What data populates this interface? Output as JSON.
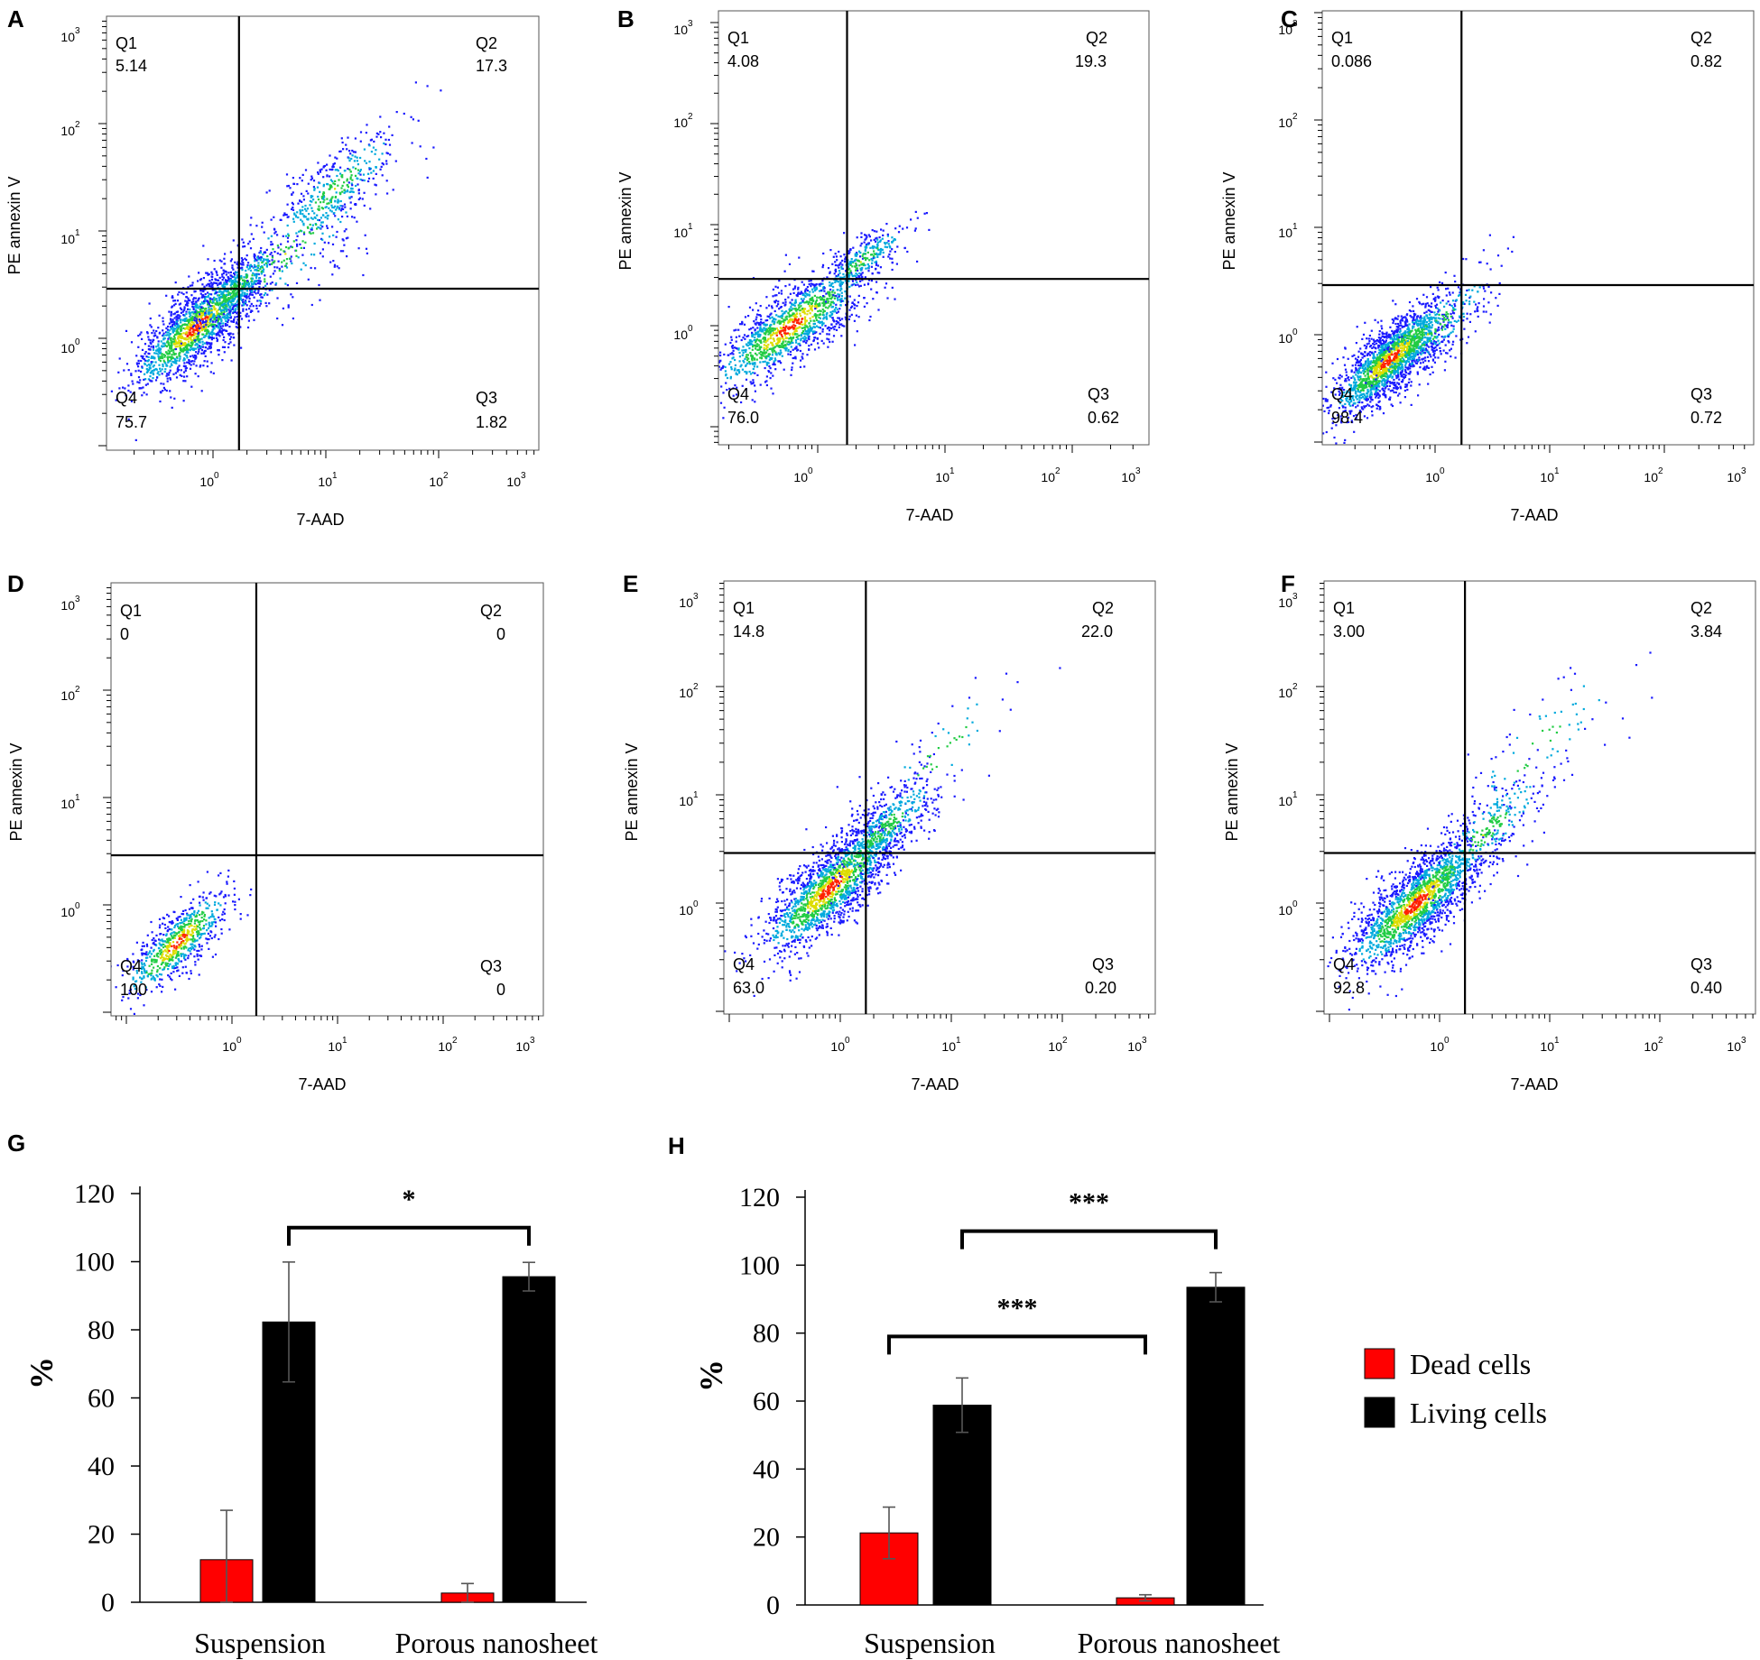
{
  "chart_data": [
    {
      "panel": "A",
      "type": "scatter",
      "xlabel": "7-AAD",
      "ylabel": "PE annexin V",
      "x_ticks": [
        "10",
        "10",
        "10",
        "10"
      ],
      "x_tick_exponents": [
        "0",
        "1",
        "2",
        "3"
      ],
      "y_ticks": [
        "10",
        "10",
        "10",
        "10"
      ],
      "y_tick_exponents": [
        "0",
        "1",
        "2",
        "3"
      ],
      "quadrants": {
        "Q1": {
          "label": "Q1",
          "value": "5.14"
        },
        "Q2": {
          "label": "Q2",
          "value": "17.3"
        },
        "Q3": {
          "label": "Q3",
          "value": "1.82"
        },
        "Q4": {
          "label": "Q4",
          "value": "75.7"
        }
      },
      "gate": {
        "x": 1.7,
        "y": 2.9
      },
      "clusters": [
        {
          "x": 0.7,
          "y": 1.3,
          "spread": 0.28,
          "n": 1500
        },
        {
          "x": 1.6,
          "y": 3.0,
          "spread": 0.2,
          "n": 400
        },
        {
          "x": 12,
          "y": 25,
          "spread": 0.3,
          "n": 400
        },
        {
          "x": 4,
          "y": 6,
          "spread": 0.45,
          "n": 250
        }
      ]
    },
    {
      "panel": "B",
      "type": "scatter",
      "xlabel": "7-AAD",
      "ylabel": "PE annexin V",
      "x_ticks": [
        "10",
        "10",
        "10",
        "10"
      ],
      "x_tick_exponents": [
        "0",
        "1",
        "2",
        "3"
      ],
      "y_ticks": [
        "10",
        "10",
        "10",
        "10"
      ],
      "y_tick_exponents": [
        "0",
        "1",
        "2",
        "3"
      ],
      "quadrants": {
        "Q1": {
          "label": "Q1",
          "value": "4.08"
        },
        "Q2": {
          "label": "Q2",
          "value": "19.3"
        },
        "Q3": {
          "label": "Q3",
          "value": "0.62"
        },
        "Q4": {
          "label": "Q4",
          "value": "76.0"
        }
      },
      "gate": {
        "x": 1.7,
        "y": 2.9
      },
      "clusters": [
        {
          "x": 0.6,
          "y": 1.0,
          "spread": 0.3,
          "n": 1300
        },
        {
          "x": 2.2,
          "y": 4.5,
          "spread": 0.18,
          "n": 300
        }
      ]
    },
    {
      "panel": "C",
      "type": "scatter",
      "xlabel": "7-AAD",
      "ylabel": "PE annexin V",
      "x_ticks": [
        "10",
        "10",
        "10",
        "10"
      ],
      "x_tick_exponents": [
        "0",
        "1",
        "2",
        "3"
      ],
      "y_ticks": [
        "10",
        "10",
        "10",
        "10"
      ],
      "y_tick_exponents": [
        "0",
        "1",
        "2",
        "3"
      ],
      "quadrants": {
        "Q1": {
          "label": "Q1",
          "value": "0.086"
        },
        "Q2": {
          "label": "Q2",
          "value": "0.82"
        },
        "Q3": {
          "label": "Q3",
          "value": "0.72"
        },
        "Q4": {
          "label": "Q4",
          "value": "98.4"
        }
      },
      "gate": {
        "x": 1.7,
        "y": 2.9
      },
      "clusters": [
        {
          "x": 0.4,
          "y": 0.6,
          "spread": 0.25,
          "n": 1800
        },
        {
          "x": 0.9,
          "y": 1.1,
          "spread": 0.3,
          "n": 300
        }
      ]
    },
    {
      "panel": "D",
      "type": "scatter",
      "xlabel": "7-AAD",
      "ylabel": "PE annexin V",
      "x_ticks": [
        "10",
        "10",
        "10",
        "10"
      ],
      "x_tick_exponents": [
        "0",
        "1",
        "2",
        "3"
      ],
      "y_ticks": [
        "10",
        "10",
        "10",
        "10"
      ],
      "y_tick_exponents": [
        "0",
        "1",
        "2",
        "3"
      ],
      "quadrants": {
        "Q1": {
          "label": "Q1",
          "value": "0"
        },
        "Q2": {
          "label": "Q2",
          "value": "0"
        },
        "Q3": {
          "label": "Q3",
          "value": "0"
        },
        "Q4": {
          "label": "Q4",
          "value": "100"
        }
      },
      "gate": {
        "x": 1.7,
        "y": 2.9
      },
      "clusters": [
        {
          "x": 0.3,
          "y": 0.45,
          "spread": 0.25,
          "n": 700
        }
      ]
    },
    {
      "panel": "E",
      "type": "scatter",
      "xlabel": "7-AAD",
      "ylabel": "PE annexin V",
      "x_ticks": [
        "10",
        "10",
        "10",
        "10"
      ],
      "x_tick_exponents": [
        "0",
        "1",
        "2",
        "3"
      ],
      "y_ticks": [
        "10",
        "10",
        "10",
        "10"
      ],
      "y_tick_exponents": [
        "0",
        "1",
        "2",
        "3"
      ],
      "quadrants": {
        "Q1": {
          "label": "Q1",
          "value": "14.8"
        },
        "Q2": {
          "label": "Q2",
          "value": "22.0"
        },
        "Q3": {
          "label": "Q3",
          "value": "0.20"
        },
        "Q4": {
          "label": "Q4",
          "value": "63.0"
        }
      },
      "gate": {
        "x": 1.7,
        "y": 2.9
      },
      "clusters": [
        {
          "x": 0.8,
          "y": 1.4,
          "spread": 0.3,
          "n": 1600
        },
        {
          "x": 2.5,
          "y": 5,
          "spread": 0.25,
          "n": 500
        },
        {
          "x": 8,
          "y": 25,
          "spread": 0.35,
          "n": 60
        }
      ]
    },
    {
      "panel": "F",
      "type": "scatter",
      "xlabel": "7-AAD",
      "ylabel": "PE annexin V",
      "x_ticks": [
        "10",
        "10",
        "10",
        "10"
      ],
      "x_tick_exponents": [
        "0",
        "1",
        "2",
        "3"
      ],
      "y_ticks": [
        "10",
        "10",
        "10",
        "10"
      ],
      "y_tick_exponents": [
        "0",
        "1",
        "2",
        "3"
      ],
      "quadrants": {
        "Q1": {
          "label": "Q1",
          "value": "3.00"
        },
        "Q2": {
          "label": "Q2",
          "value": "3.84"
        },
        "Q3": {
          "label": "Q3",
          "value": "0.40"
        },
        "Q4": {
          "label": "Q4",
          "value": "92.8"
        }
      },
      "gate": {
        "x": 1.7,
        "y": 2.9
      },
      "clusters": [
        {
          "x": 0.6,
          "y": 1.0,
          "spread": 0.3,
          "n": 1800
        },
        {
          "x": 2.5,
          "y": 4.5,
          "spread": 0.3,
          "n": 300
        },
        {
          "x": 8,
          "y": 30,
          "spread": 0.4,
          "n": 80
        }
      ]
    },
    {
      "panel": "G",
      "type": "bar",
      "categories": [
        "Suspension",
        "Porous nanosheet"
      ],
      "series": [
        {
          "name": "Dead cells",
          "values": [
            12.5,
            2.7
          ],
          "errors": [
            14.5,
            2.8
          ],
          "color": "#ff0000"
        },
        {
          "name": "Living cells",
          "values": [
            82.3,
            95.6
          ],
          "errors": [
            17.6,
            4.2
          ],
          "color": "#000000"
        }
      ],
      "ylabel": "%",
      "ylim": [
        0,
        120
      ],
      "y_ticks": [
        "0",
        "20",
        "40",
        "60",
        "80",
        "100",
        "120"
      ],
      "significance": [
        {
          "label": "*",
          "from": "Suspension / Living cells",
          "to": "Porous nanosheet / Living cells",
          "level": 110
        }
      ]
    },
    {
      "panel": "H",
      "type": "bar",
      "categories": [
        "Suspension",
        "Porous nanosheet"
      ],
      "series": [
        {
          "name": "Dead cells",
          "values": [
            21.2,
            2.1
          ],
          "errors": [
            7.6,
            0.9
          ],
          "color": "#ff0000"
        },
        {
          "name": "Living cells",
          "values": [
            58.8,
            93.5
          ],
          "errors": [
            8.0,
            4.3
          ],
          "color": "#000000"
        }
      ],
      "ylabel": "%",
      "ylim": [
        0,
        120
      ],
      "y_ticks": [
        "0",
        "20",
        "40",
        "60",
        "80",
        "100",
        "120"
      ],
      "significance": [
        {
          "label": "***",
          "from": "Suspension / Living cells",
          "to": "Porous nanosheet / Living cells",
          "level": 110
        },
        {
          "label": "***",
          "from": "Suspension / Dead cells",
          "to": "Porous nanosheet / Dead cells",
          "level": 79
        }
      ]
    }
  ],
  "legend": {
    "items": [
      {
        "label": "Dead cells",
        "color": "#ff0000"
      },
      {
        "label": "Living cells",
        "color": "#000000"
      }
    ]
  }
}
